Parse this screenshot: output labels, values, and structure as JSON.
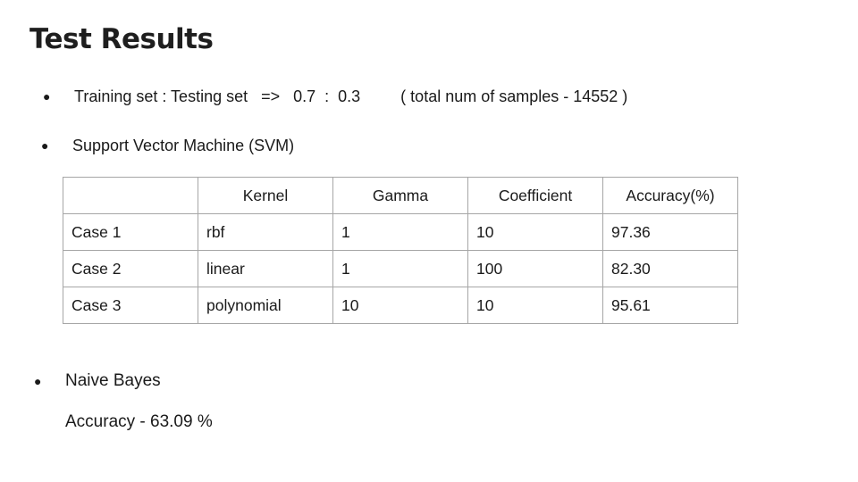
{
  "slide": {
    "title": "Test Results",
    "bullet_glyph": "●",
    "split_line": "Training set : Testing set   =>   0.7  :  0.3         ( total num of samples - 14552 )",
    "svm_heading": "Support Vector Machine (SVM)",
    "svm_table": {
      "headers": [
        "",
        "Kernel",
        "Gamma",
        "Coefficient",
        "Accuracy(%)"
      ],
      "rows": [
        [
          "Case 1",
          "rbf",
          "1",
          "10",
          "97.36"
        ],
        [
          "Case 2",
          "linear",
          "1",
          "100",
          "82.30"
        ],
        [
          "Case 3",
          "polynomial",
          "10",
          "10",
          "95.61"
        ]
      ]
    },
    "nb_heading": "Naive Bayes",
    "nb_accuracy": "Accuracy - 63.09 %"
  }
}
